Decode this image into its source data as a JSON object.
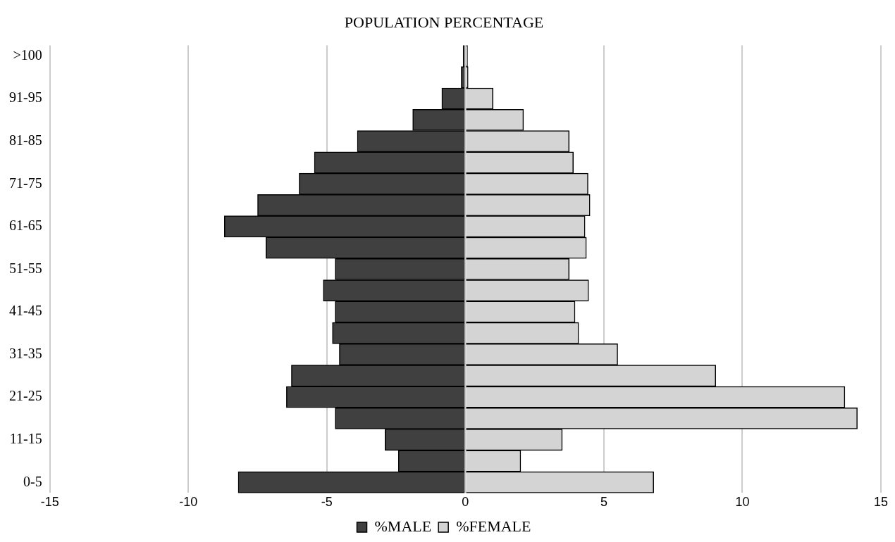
{
  "chart_data": {
    "type": "bar",
    "title": "POPULATION PERCENTAGE",
    "orientation": "horizontal",
    "stacked": true,
    "categories": [
      ">100",
      null,
      "91-95",
      null,
      "81-85",
      null,
      "71-75",
      null,
      "61-65",
      null,
      "51-55",
      null,
      "41-45",
      null,
      "31-35",
      null,
      "21-25",
      null,
      "11-15",
      null,
      "0-5"
    ],
    "series": [
      {
        "name": "%MALE",
        "color": "#404040",
        "values": [
          -0.08,
          -0.15,
          -0.85,
          -1.9,
          -3.9,
          -5.45,
          -6.0,
          -7.5,
          -8.7,
          -7.2,
          -4.7,
          -5.13,
          -4.7,
          -4.8,
          -4.55,
          -6.28,
          -6.46,
          -4.7,
          -2.9,
          -2.42,
          -8.2
        ]
      },
      {
        "name": "%FEMALE",
        "color": "#d4d4d4",
        "values": [
          0.08,
          0.1,
          1.0,
          2.1,
          3.75,
          3.9,
          4.43,
          4.5,
          4.32,
          4.37,
          3.75,
          4.45,
          3.96,
          4.09,
          5.5,
          9.04,
          13.7,
          14.15,
          3.5,
          2.0,
          6.8
        ]
      }
    ],
    "xlim": [
      -15,
      15
    ],
    "xticks": [
      -15,
      -10,
      -5,
      0,
      5,
      10,
      15
    ],
    "grid": "x",
    "legend": "bottom"
  }
}
